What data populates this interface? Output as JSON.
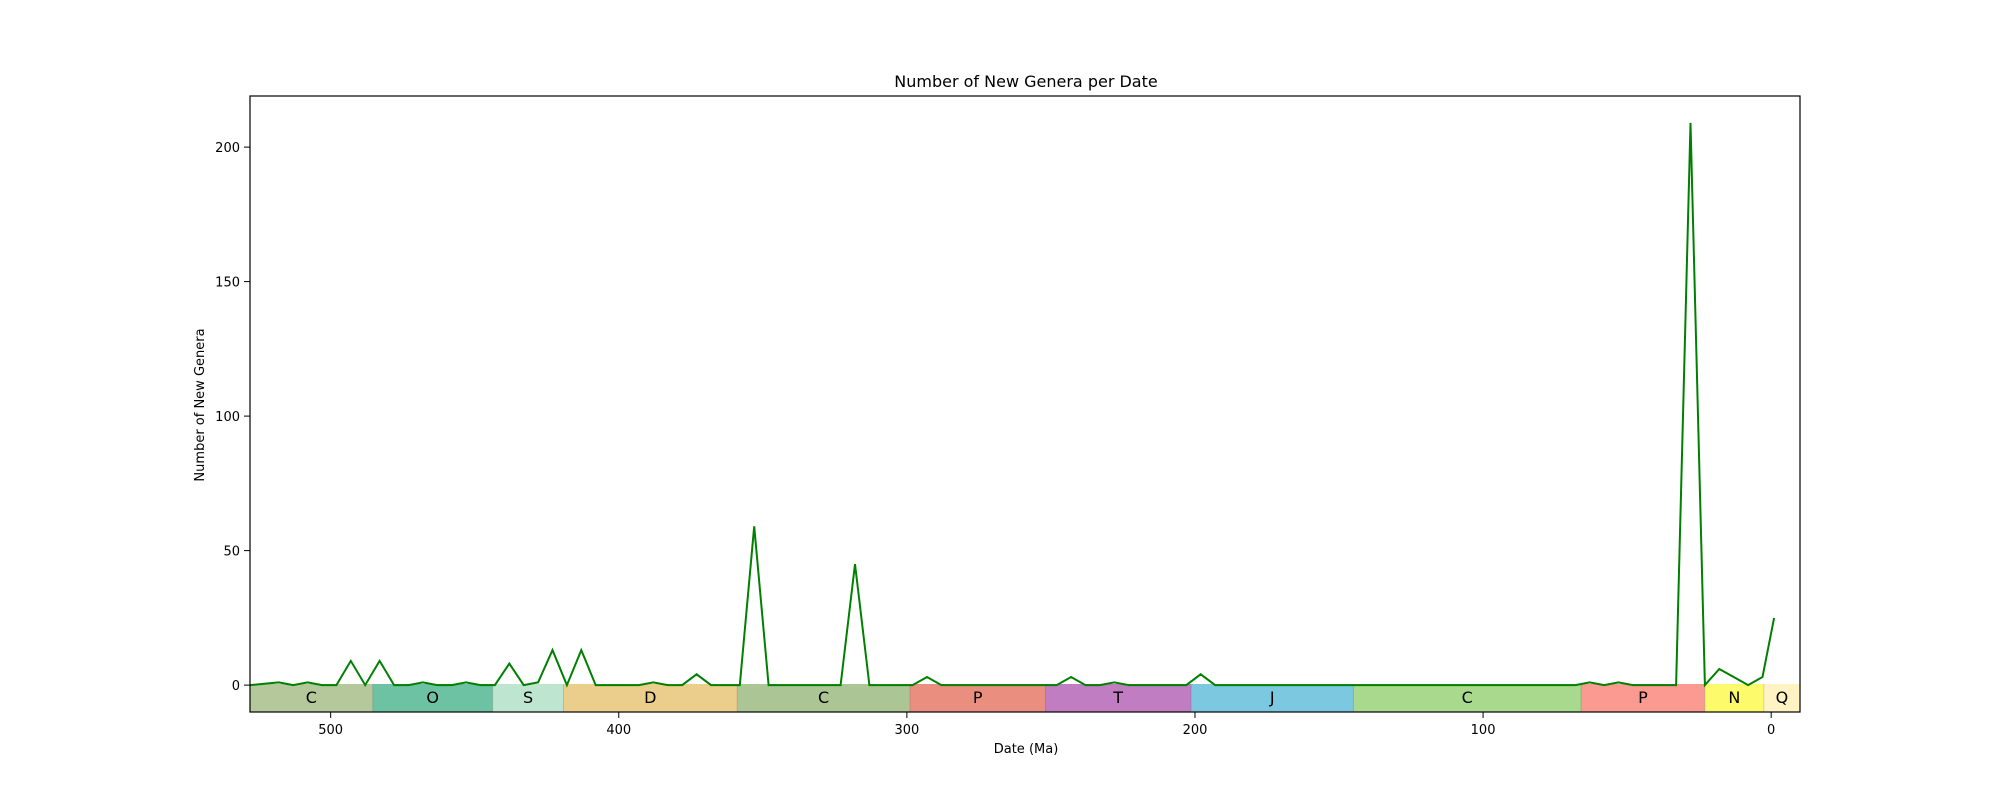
{
  "chart_data": {
    "type": "line",
    "title": "Number of New Genera per Date",
    "xlabel": "Date (Ma)",
    "ylabel": "Number of New Genera",
    "xlim": [
      528,
      -10
    ],
    "ylim": [
      -10,
      219
    ],
    "x_ticks": [
      500,
      400,
      300,
      200,
      100,
      0
    ],
    "y_ticks": [
      0,
      50,
      100,
      150,
      200
    ],
    "grid": false,
    "series": [
      {
        "color": "#008000",
        "x": [
          528,
          518,
          513,
          508,
          503,
          498,
          493,
          488,
          483,
          478,
          473,
          468,
          463,
          458,
          453,
          448,
          443,
          438,
          433,
          428,
          423,
          418,
          413,
          408,
          403,
          398,
          393,
          388,
          383,
          378,
          373,
          368,
          363,
          358,
          353,
          348,
          343,
          338,
          333,
          328,
          323,
          318,
          313,
          308,
          303,
          298,
          293,
          288,
          283,
          278,
          273,
          268,
          263,
          258,
          253,
          248,
          243,
          238,
          233,
          228,
          223,
          218,
          213,
          208,
          203,
          198,
          193,
          188,
          183,
          178,
          173,
          168,
          163,
          158,
          153,
          148,
          143,
          138,
          133,
          128,
          123,
          118,
          113,
          108,
          103,
          98,
          93,
          88,
          83,
          78,
          73,
          68,
          63,
          58,
          53,
          48,
          43,
          38,
          33,
          28,
          23,
          18,
          13,
          8,
          3,
          -1
        ],
        "y": [
          0,
          1,
          0,
          1,
          0,
          0,
          9,
          0,
          9,
          0,
          0,
          1,
          0,
          0,
          1,
          0,
          0,
          8,
          0,
          1,
          13,
          0,
          13,
          0,
          0,
          0,
          0,
          1,
          0,
          0,
          4,
          0,
          0,
          0,
          59,
          0,
          0,
          0,
          0,
          0,
          0,
          45,
          0,
          0,
          0,
          0,
          3,
          0,
          0,
          0,
          0,
          0,
          0,
          0,
          0,
          0,
          3,
          0,
          0,
          1,
          0,
          0,
          0,
          0,
          0,
          4,
          0,
          0,
          0,
          0,
          0,
          0,
          0,
          0,
          0,
          0,
          0,
          0,
          0,
          0,
          0,
          0,
          0,
          0,
          0,
          0,
          0,
          0,
          0,
          0,
          0,
          0,
          1,
          0,
          1,
          0,
          0,
          0,
          0,
          209,
          0,
          6,
          3,
          0,
          3,
          25
        ]
      }
    ],
    "periods": [
      {
        "label": "C",
        "start": 538.8,
        "end": 485.4,
        "color": "#b5c89b"
      },
      {
        "label": "O",
        "start": 485.4,
        "end": 443.8,
        "color": "#6dc2a4"
      },
      {
        "label": "S",
        "start": 443.8,
        "end": 419.2,
        "color": "#bde5cf"
      },
      {
        "label": "D",
        "start": 419.2,
        "end": 358.9,
        "color": "#ecce8c"
      },
      {
        "label": "C",
        "start": 358.9,
        "end": 298.9,
        "color": "#abc595"
      },
      {
        "label": "P",
        "start": 298.9,
        "end": 251.9,
        "color": "#ea8f80"
      },
      {
        "label": "T",
        "start": 251.9,
        "end": 201.4,
        "color": "#c17dc1"
      },
      {
        "label": "J",
        "start": 201.4,
        "end": 145.0,
        "color": "#7cc8e0"
      },
      {
        "label": "C",
        "start": 145.0,
        "end": 66.0,
        "color": "#a9d98c"
      },
      {
        "label": "P",
        "start": 66.0,
        "end": 23.03,
        "color": "#fb9a90"
      },
      {
        "label": "N",
        "start": 23.03,
        "end": 2.58,
        "color": "#fdfb6c"
      },
      {
        "label": "Q",
        "start": 2.58,
        "end": -10,
        "color": "#fff3c4"
      }
    ]
  }
}
